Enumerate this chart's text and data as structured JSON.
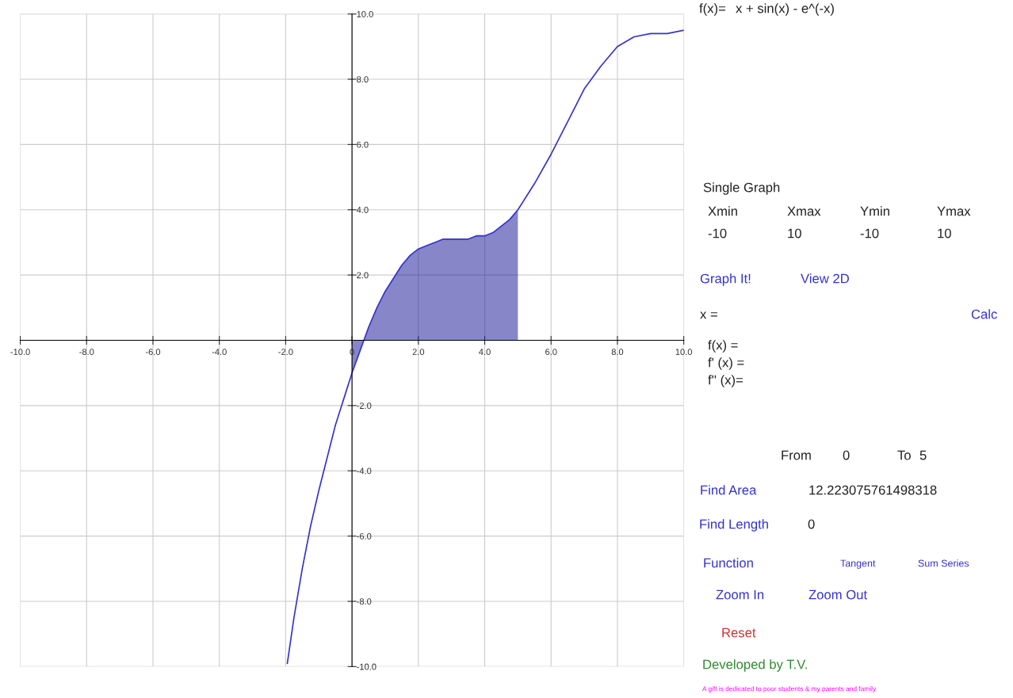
{
  "chart_data": [
    {
      "type": "line",
      "xlim": [
        -10,
        10
      ],
      "ylim": [
        -10,
        10
      ],
      "grid": true,
      "marker": "none",
      "line_style": "solid",
      "xticks": [
        {
          "value": -10,
          "label": "-10.0"
        },
        {
          "value": -8,
          "label": "-8.0"
        },
        {
          "value": -6,
          "label": "-6.0"
        },
        {
          "value": -4,
          "label": "-4.0"
        },
        {
          "value": -2,
          "label": "-2.0"
        },
        {
          "value": 0,
          "label": "0"
        },
        {
          "value": 2,
          "label": "2.0"
        },
        {
          "value": 4,
          "label": "4.0"
        },
        {
          "value": 6,
          "label": "6.0"
        },
        {
          "value": 8,
          "label": "8.0"
        },
        {
          "value": 10,
          "label": "10.0"
        }
      ],
      "yticks": [
        {
          "value": -10,
          "label": "-10.0"
        },
        {
          "value": -8,
          "label": "-8.0"
        },
        {
          "value": -6,
          "label": "-6.0"
        },
        {
          "value": -4,
          "label": "-4.0"
        },
        {
          "value": -2,
          "label": "-2.0"
        },
        {
          "value": 2,
          "label": "2.0"
        },
        {
          "value": 4,
          "label": "4.0"
        },
        {
          "value": 6,
          "label": "6.0"
        },
        {
          "value": 8,
          "label": "8.0"
        },
        {
          "value": 10,
          "label": "10.0"
        }
      ],
      "series": [
        {
          "type": "area",
          "color": "#22229a",
          "x": [
            0,
            0.25,
            0.5,
            0.75,
            1,
            1.25,
            1.5,
            1.75,
            2,
            2.25,
            2.5,
            2.75,
            3,
            3.25,
            3.5,
            3.75,
            4,
            4.25,
            4.5,
            4.75,
            5
          ],
          "values": [
            -1.0,
            -0.3,
            0.4,
            1.0,
            1.5,
            1.9,
            2.3,
            2.6,
            2.8,
            2.9,
            3.0,
            3.1,
            3.1,
            3.1,
            3.1,
            3.2,
            3.2,
            3.3,
            3.5,
            3.7,
            4.0
          ]
        },
        {
          "type": "line",
          "color": "#3333cc",
          "x": [
            -1.95,
            -1.75,
            -1.5,
            -1.25,
            -1,
            -0.75,
            -0.5,
            -0.25,
            0,
            0.25,
            0.5,
            0.75,
            1,
            1.25,
            1.5,
            1.75,
            2,
            2.25,
            2.5,
            2.75,
            3,
            3.25,
            3.5,
            3.75,
            4,
            4.25,
            4.5,
            4.75,
            5,
            5.5,
            6,
            6.5,
            7,
            7.5,
            8,
            8.5,
            9,
            9.5,
            10
          ],
          "values": [
            -9.9,
            -8.5,
            -7.0,
            -5.7,
            -4.6,
            -3.6,
            -2.6,
            -1.8,
            -1.0,
            -0.3,
            0.4,
            1.0,
            1.5,
            1.9,
            2.3,
            2.6,
            2.8,
            2.9,
            3.0,
            3.1,
            3.1,
            3.1,
            3.1,
            3.2,
            3.2,
            3.3,
            3.5,
            3.7,
            4.0,
            4.8,
            5.7,
            6.7,
            7.7,
            8.4,
            9.0,
            9.3,
            9.4,
            9.4,
            9.5
          ]
        }
      ]
    },
    {
      "type": "other",
      "annotations": [
        "f(x)=",
        "x + sin(x) - e^(-x)",
        "Single Graph",
        "Xmin",
        "Xmax",
        "Ymin",
        "Ymax",
        "-10",
        "10",
        "-10",
        "10",
        "Graph It!",
        "View 2D",
        "x =",
        "Calc",
        "f(x) =",
        "f' (x) =",
        "f'' (x)=",
        "From",
        "0",
        "To",
        "5",
        "Find Area",
        "12.223075761498318",
        "Find Length",
        "0",
        "Function",
        "Tangent",
        "Sum Series",
        "Zoom In",
        "Zoom Out",
        "Reset",
        "Developed by T.V.",
        "A gift is dedicated to poor students & my parents and family"
      ]
    }
  ]
}
